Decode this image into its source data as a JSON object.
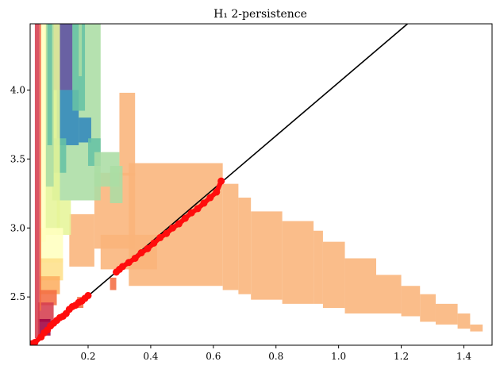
{
  "chart_data": {
    "type": "scatter",
    "title": "H₁ 2-persistence",
    "xlabel": "",
    "ylabel": "",
    "xlim": [
      0.015,
      1.49
    ],
    "ylim": [
      2.15,
      4.48
    ],
    "x_ticks": [
      0.2,
      0.4,
      0.6,
      0.8,
      1.0,
      1.2,
      1.4
    ],
    "x_tick_labels": [
      "0.2",
      "0.4",
      "0.6",
      "0.8",
      "1.0",
      "1.2",
      "1.4"
    ],
    "y_ticks": [
      2.5,
      3.0,
      3.5,
      4.0
    ],
    "y_tick_labels": [
      "2.5",
      "3.0",
      "3.5",
      "4.0"
    ],
    "grid": false,
    "diagonal_line": {
      "from": [
        0.015,
        2.15
      ],
      "to": [
        1.22,
        4.48
      ],
      "color": "#000000"
    },
    "colors": {
      "points": "#ff0d0d",
      "orange_region": "#f9b47a",
      "palette": [
        "#9e0142",
        "#d53e4f",
        "#f46d43",
        "#fdae61",
        "#fee08b",
        "#ffffbf",
        "#e6f598",
        "#abdda4",
        "#66c2a5",
        "#3288bd",
        "#5e4fa2"
      ]
    },
    "regions": [
      {
        "x0": 0.33,
        "x1": 0.63,
        "y0": 2.58,
        "y1": 3.47,
        "color": "#f9b47a"
      },
      {
        "x0": 0.22,
        "x1": 0.35,
        "y0": 2.85,
        "y1": 3.4,
        "color": "#f9b47a"
      },
      {
        "x0": 0.3,
        "x1": 0.35,
        "y0": 3.38,
        "y1": 3.98,
        "color": "#f9b47a"
      },
      {
        "x0": 0.14,
        "x1": 0.22,
        "y0": 2.72,
        "y1": 3.1,
        "color": "#f9b47a"
      },
      {
        "x0": 0.63,
        "x1": 0.68,
        "y0": 2.55,
        "y1": 3.32,
        "color": "#f9b47a"
      },
      {
        "x0": 0.68,
        "x1": 0.72,
        "y0": 2.52,
        "y1": 3.22,
        "color": "#f9b47a"
      },
      {
        "x0": 0.72,
        "x1": 0.82,
        "y0": 2.48,
        "y1": 3.12,
        "color": "#f9b47a"
      },
      {
        "x0": 0.82,
        "x1": 0.92,
        "y0": 2.45,
        "y1": 3.05,
        "color": "#f9b47a"
      },
      {
        "x0": 0.92,
        "x1": 0.95,
        "y0": 2.45,
        "y1": 2.98,
        "color": "#f9b47a"
      },
      {
        "x0": 0.95,
        "x1": 1.02,
        "y0": 2.42,
        "y1": 2.9,
        "color": "#f9b47a"
      },
      {
        "x0": 1.02,
        "x1": 1.12,
        "y0": 2.38,
        "y1": 2.78,
        "color": "#f9b47a"
      },
      {
        "x0": 1.12,
        "x1": 1.2,
        "y0": 2.38,
        "y1": 2.66,
        "color": "#f9b47a"
      },
      {
        "x0": 1.2,
        "x1": 1.26,
        "y0": 2.36,
        "y1": 2.58,
        "color": "#f9b47a"
      },
      {
        "x0": 1.26,
        "x1": 1.31,
        "y0": 2.32,
        "y1": 2.52,
        "color": "#f9b47a"
      },
      {
        "x0": 1.31,
        "x1": 1.38,
        "y0": 2.3,
        "y1": 2.45,
        "color": "#f9b47a"
      },
      {
        "x0": 1.38,
        "x1": 1.42,
        "y0": 2.27,
        "y1": 2.38,
        "color": "#f9b47a"
      },
      {
        "x0": 1.42,
        "x1": 1.46,
        "y0": 2.25,
        "y1": 2.3,
        "color": "#f9b47a"
      },
      {
        "x0": 0.24,
        "x1": 0.42,
        "y0": 2.7,
        "y1": 2.95,
        "color": "#f9b47a"
      },
      {
        "x0": 0.085,
        "x1": 0.24,
        "y0": 3.2,
        "y1": 4.48,
        "color": "#abdda4"
      },
      {
        "x0": 0.09,
        "x1": 0.15,
        "y0": 4.0,
        "y1": 4.48,
        "color": "#5e4fa2"
      },
      {
        "x0": 0.1,
        "x1": 0.17,
        "y0": 3.6,
        "y1": 4.0,
        "color": "#3288bd"
      },
      {
        "x0": 0.15,
        "x1": 0.19,
        "y0": 3.85,
        "y1": 4.48,
        "color": "#66c2a5"
      },
      {
        "x0": 0.09,
        "x1": 0.13,
        "y0": 3.4,
        "y1": 3.65,
        "color": "#66c2a5"
      },
      {
        "x0": 0.17,
        "x1": 0.21,
        "y0": 3.62,
        "y1": 3.8,
        "color": "#3288bd"
      },
      {
        "x0": 0.2,
        "x1": 0.24,
        "y0": 3.45,
        "y1": 3.65,
        "color": "#66c2a5"
      },
      {
        "x0": 0.22,
        "x1": 0.3,
        "y0": 3.3,
        "y1": 3.55,
        "color": "#abdda4"
      },
      {
        "x0": 0.27,
        "x1": 0.31,
        "y0": 3.18,
        "y1": 3.45,
        "color": "#abdda4"
      },
      {
        "x0": 0.06,
        "x1": 0.11,
        "y0": 2.95,
        "y1": 4.48,
        "color": "#e6f598"
      },
      {
        "x0": 0.065,
        "x1": 0.09,
        "y0": 3.3,
        "y1": 4.48,
        "color": "#abdda4"
      },
      {
        "x0": 0.05,
        "x1": 0.065,
        "y0": 2.9,
        "y1": 4.48,
        "color": "#ffffbf"
      },
      {
        "x0": 0.07,
        "x1": 0.085,
        "y0": 3.6,
        "y1": 4.48,
        "color": "#66c2a5"
      },
      {
        "x0": 0.1,
        "x1": 0.145,
        "y0": 2.95,
        "y1": 3.2,
        "color": "#e6f598"
      },
      {
        "x0": 0.045,
        "x1": 0.12,
        "y0": 2.75,
        "y1": 3.0,
        "color": "#ffffbf"
      },
      {
        "x0": 0.045,
        "x1": 0.12,
        "y0": 2.62,
        "y1": 2.78,
        "color": "#fee08b"
      },
      {
        "x0": 0.045,
        "x1": 0.11,
        "y0": 2.52,
        "y1": 2.65,
        "color": "#fdae61"
      },
      {
        "x0": 0.045,
        "x1": 0.1,
        "y0": 2.44,
        "y1": 2.55,
        "color": "#f46d43"
      },
      {
        "x0": 0.04,
        "x1": 0.09,
        "y0": 2.32,
        "y1": 2.46,
        "color": "#d53e4f"
      },
      {
        "x0": 0.04,
        "x1": 0.08,
        "y0": 2.22,
        "y1": 2.34,
        "color": "#9e0142"
      },
      {
        "x0": 0.03,
        "x1": 0.045,
        "y0": 2.2,
        "y1": 4.48,
        "color": "#d53e4f"
      },
      {
        "x0": 0.045,
        "x1": 0.05,
        "y0": 2.4,
        "y1": 4.48,
        "color": "#f46d43"
      },
      {
        "x0": 0.17,
        "x1": 0.18,
        "y0": 4.1,
        "y1": 4.48,
        "color": "#abdda4"
      },
      {
        "x0": 0.165,
        "x1": 0.185,
        "y0": 2.42,
        "y1": 2.5,
        "color": "#f46d43"
      },
      {
        "x0": 0.27,
        "x1": 0.29,
        "y0": 2.55,
        "y1": 2.64,
        "color": "#f46d43"
      }
    ],
    "points": {
      "x": [
        0.02,
        0.03,
        0.05,
        0.06,
        0.07,
        0.08,
        0.09,
        0.1,
        0.11,
        0.12,
        0.13,
        0.14,
        0.15,
        0.16,
        0.17,
        0.18,
        0.19,
        0.2,
        0.29,
        0.3,
        0.31,
        0.33,
        0.35,
        0.37,
        0.39,
        0.41,
        0.43,
        0.45,
        0.47,
        0.49,
        0.51,
        0.53,
        0.55,
        0.57,
        0.59,
        0.61,
        0.625
      ],
      "y": [
        2.16,
        2.17,
        2.21,
        2.24,
        2.26,
        2.29,
        2.31,
        2.33,
        2.35,
        2.36,
        2.38,
        2.41,
        2.43,
        2.44,
        2.46,
        2.47,
        2.49,
        2.51,
        2.68,
        2.7,
        2.72,
        2.75,
        2.78,
        2.82,
        2.85,
        2.89,
        2.93,
        2.96,
        3.0,
        3.03,
        3.07,
        3.11,
        3.14,
        3.18,
        3.22,
        3.26,
        3.34
      ]
    }
  }
}
